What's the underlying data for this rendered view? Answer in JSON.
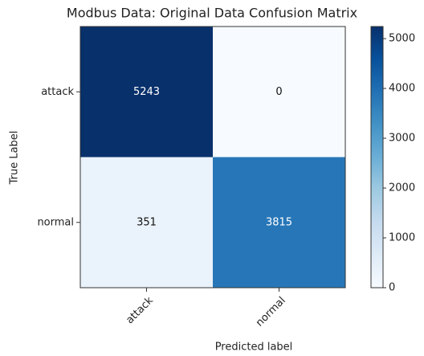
{
  "chart_data": {
    "type": "heatmap",
    "title": "Modbus Data: Original Data Confusion Matrix",
    "xlabel": "Predicted label",
    "ylabel": "True Label",
    "columns": [
      "attack",
      "normal"
    ],
    "rows": [
      "attack",
      "normal"
    ],
    "values": [
      [
        5243,
        0
      ],
      [
        351,
        3815
      ]
    ],
    "colormap": "Blues",
    "clim": [
      0,
      5243
    ],
    "cticks": [
      0,
      1000,
      2000,
      3000,
      4000,
      5000
    ]
  }
}
